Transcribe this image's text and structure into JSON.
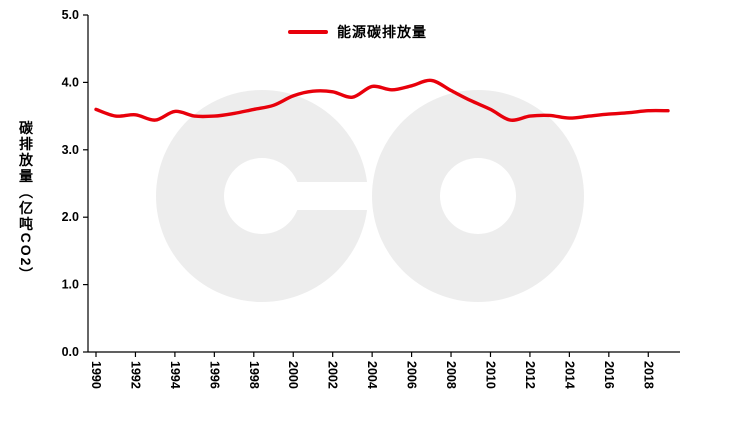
{
  "chart_data": {
    "type": "line",
    "title": "",
    "xlabel": "",
    "ylabel": "碳排放量（亿吨CO2）",
    "ylim": [
      0,
      5
    ],
    "grid": false,
    "legend_position": "top-center",
    "y_ticks": [
      0,
      1,
      2,
      3,
      4,
      5
    ],
    "y_tick_labels": [
      "0.0",
      "1.0",
      "2.0",
      "3.0",
      "4.0",
      "5.0"
    ],
    "x_tick_labels": [
      "1990",
      "1992",
      "1994",
      "1996",
      "1998",
      "2000",
      "2002",
      "2004",
      "2006",
      "2008",
      "2010",
      "2012",
      "2014",
      "2016",
      "2018"
    ],
    "series": [
      {
        "name": "能源碳排放量",
        "color": "#e8000b",
        "x": [
          1990,
          1991,
          1992,
          1993,
          1994,
          1995,
          1996,
          1997,
          1998,
          1999,
          2000,
          2001,
          2002,
          2003,
          2004,
          2005,
          2006,
          2007,
          2008,
          2009,
          2010,
          2011,
          2012,
          2013,
          2014,
          2015,
          2016,
          2017,
          2018,
          2019
        ],
        "values": [
          3.6,
          3.5,
          3.52,
          3.44,
          3.57,
          3.5,
          3.5,
          3.54,
          3.6,
          3.66,
          3.8,
          3.87,
          3.86,
          3.78,
          3.94,
          3.89,
          3.95,
          4.03,
          3.88,
          3.73,
          3.6,
          3.44,
          3.5,
          3.51,
          3.47,
          3.5,
          3.53,
          3.55,
          3.58,
          3.58
        ]
      }
    ]
  },
  "watermark": {
    "text": "eo",
    "color": "#ededed"
  },
  "axis_colors": {
    "axis_line": "#000000",
    "tick": "#000000"
  }
}
